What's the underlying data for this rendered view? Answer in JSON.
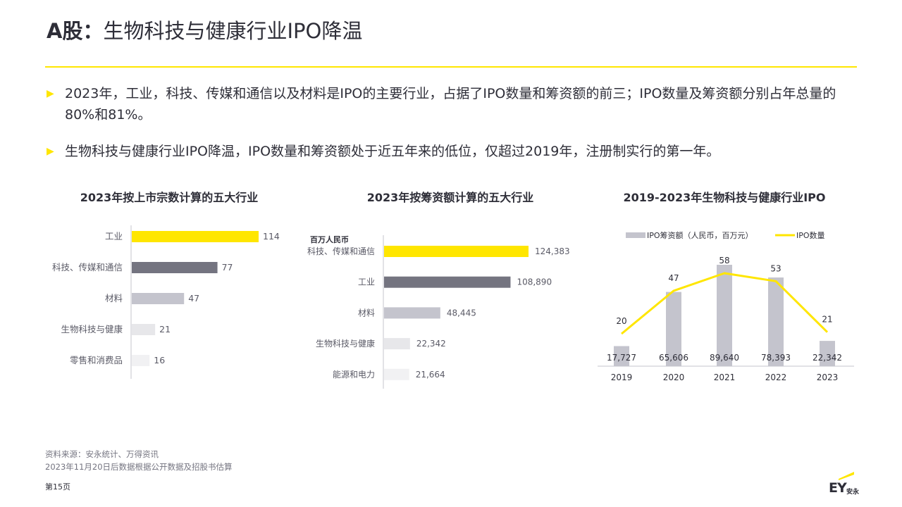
{
  "title": {
    "lead": "A股：",
    "main": "生物科技与健康行业IPO降温"
  },
  "bullets": [
    "2023年，工业，科技、传媒和通信以及材料是IPO的主要行业，占据了IPO数量和筹资额的前三；IPO数量及筹资额分别占年总量的80%和81%。",
    "生物科技与健康行业IPO降温，IPO数量和筹资额处于近五年来的低位，仅超过2019年，注册制实行的第一年。"
  ],
  "colors": {
    "accent": "#ffe600",
    "dark": "#747480",
    "mid": "#c4c4cd",
    "light": "#e7e7ea",
    "lighter": "#f1f1f3",
    "text": "#2e2e38"
  },
  "chart_data": [
    {
      "type": "bar",
      "orientation": "horizontal",
      "title": "2023年按上市宗数计算的五大行业",
      "categories": [
        "工业",
        "科技、传媒和通信",
        "材料",
        "生物科技与健康",
        "零售和消费品"
      ],
      "values": [
        114,
        77,
        47,
        21,
        16
      ],
      "value_labels": [
        "114",
        "77",
        "47",
        "21",
        "16"
      ],
      "xlim": [
        0,
        114
      ]
    },
    {
      "type": "bar",
      "orientation": "horizontal",
      "title": "2023年按筹资额计算的五大行业",
      "unit_label": "百万人民币",
      "categories": [
        "科技、传媒和通信",
        "工业",
        "材料",
        "生物科技与健康",
        "能源和电力"
      ],
      "values": [
        124383,
        108890,
        48445,
        22342,
        21664
      ],
      "value_labels": [
        "124,383",
        "108,890",
        "48,445",
        "22,342",
        "21,664"
      ],
      "xlim": [
        0,
        124383
      ]
    },
    {
      "type": "bar+line",
      "title": "2019-2023年生物科技与健康行业IPO",
      "categories": [
        "2019",
        "2020",
        "2021",
        "2022",
        "2023"
      ],
      "series": [
        {
          "name": "IPO筹资额（人民币，百万元）",
          "type": "bar",
          "values": [
            17727,
            65606,
            89640,
            78393,
            22342
          ],
          "labels": [
            "17,727",
            "65,606",
            "89,640",
            "78,393",
            "22,342"
          ]
        },
        {
          "name": "IPO数量",
          "type": "line",
          "values": [
            20,
            47,
            58,
            53,
            21
          ],
          "labels": [
            "20",
            "47",
            "58",
            "53",
            "21"
          ]
        }
      ],
      "legend_position": "top",
      "grid": false
    }
  ],
  "source": {
    "line1": "资料来源：安永统计、万得资讯",
    "line2": "2023年11月20日后数据根据公开数据及招股书估算"
  },
  "page_label": "第15页",
  "logo": {
    "mark": "EY",
    "cn": "安永"
  }
}
